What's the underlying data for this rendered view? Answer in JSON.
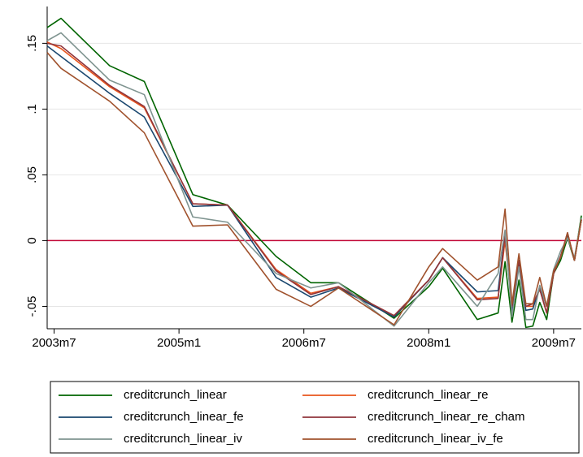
{
  "chart_data": {
    "type": "line",
    "x": [
      521,
      523,
      530,
      535,
      542,
      547,
      554,
      559,
      563,
      571,
      576,
      578,
      583,
      586,
      587,
      588,
      589,
      590,
      591,
      592,
      593,
      594,
      595,
      596,
      597,
      598
    ],
    "xlim": [
      521,
      598
    ],
    "xticks": [
      {
        "value": 522,
        "label": "2003m7"
      },
      {
        "value": 540,
        "label": "2005m1"
      },
      {
        "value": 558,
        "label": "2006m7"
      },
      {
        "value": 576,
        "label": "2008m1"
      },
      {
        "value": 594,
        "label": "2009m7"
      }
    ],
    "ylim": [
      -0.067,
      0.178
    ],
    "yticks": [
      {
        "value": -0.05,
        "label": "-.05"
      },
      0,
      {
        "value": 0.05,
        "label": ".05"
      },
      {
        "value": 0.1,
        "label": ".1"
      },
      {
        "value": 0.15,
        "label": ".15"
      }
    ],
    "grid": true,
    "reference_line": {
      "value": 0,
      "color": "#c10534"
    },
    "series": [
      {
        "name": "creditcrunch_linear",
        "color": "#006400",
        "values": [
          0.162,
          0.169,
          0.133,
          0.121,
          0.035,
          0.027,
          -0.012,
          -0.032,
          -0.032,
          -0.059,
          -0.035,
          -0.021,
          -0.06,
          -0.055,
          -0.016,
          -0.062,
          -0.03,
          -0.066,
          -0.065,
          -0.047,
          -0.06,
          -0.025,
          -0.015,
          0.002,
          -0.015,
          0.019
        ]
      },
      {
        "name": "creditcrunch_linear_re",
        "color": "#e8541c",
        "values": [
          0.151,
          0.146,
          0.117,
          0.101,
          0.028,
          0.027,
          -0.022,
          -0.04,
          -0.035,
          -0.057,
          -0.03,
          -0.013,
          -0.044,
          -0.043,
          0.0,
          -0.05,
          -0.015,
          -0.05,
          -0.05,
          -0.037,
          -0.055,
          -0.025,
          -0.012,
          0.004,
          -0.015,
          0.016
        ]
      },
      {
        "name": "creditcrunch_linear_fe",
        "color": "#1a476f",
        "values": [
          0.148,
          0.14,
          0.112,
          0.094,
          0.026,
          0.027,
          -0.028,
          -0.043,
          -0.036,
          -0.058,
          -0.03,
          -0.013,
          -0.039,
          -0.038,
          0.005,
          -0.053,
          -0.018,
          -0.053,
          -0.052,
          -0.035,
          -0.05,
          -0.024,
          -0.012,
          0.005,
          -0.015,
          0.016
        ]
      },
      {
        "name": "creditcrunch_linear_re_cham",
        "color": "#90353b",
        "values": [
          0.15,
          0.148,
          0.118,
          0.102,
          0.028,
          0.027,
          -0.023,
          -0.041,
          -0.035,
          -0.057,
          -0.03,
          -0.013,
          -0.045,
          -0.044,
          0.005,
          -0.05,
          -0.015,
          -0.05,
          -0.048,
          -0.037,
          -0.055,
          -0.025,
          -0.012,
          0.006,
          -0.015,
          0.016
        ]
      },
      {
        "name": "creditcrunch_linear_iv",
        "color": "#7f9490",
        "values": [
          0.152,
          0.158,
          0.122,
          0.111,
          0.018,
          0.014,
          -0.025,
          -0.036,
          -0.032,
          -0.065,
          -0.032,
          -0.02,
          -0.05,
          -0.025,
          0.008,
          -0.058,
          -0.02,
          -0.06,
          -0.06,
          -0.034,
          -0.05,
          -0.022,
          -0.008,
          0.002,
          -0.013,
          0.017
        ]
      },
      {
        "name": "creditcrunch_linear_iv_fe",
        "color": "#a0522d",
        "values": [
          0.143,
          0.131,
          0.106,
          0.082,
          0.011,
          0.012,
          -0.037,
          -0.05,
          -0.036,
          -0.064,
          -0.02,
          -0.006,
          -0.03,
          -0.02,
          0.024,
          -0.048,
          -0.01,
          -0.048,
          -0.048,
          -0.028,
          -0.05,
          -0.023,
          -0.013,
          0.006,
          -0.015,
          0.016
        ]
      }
    ]
  }
}
